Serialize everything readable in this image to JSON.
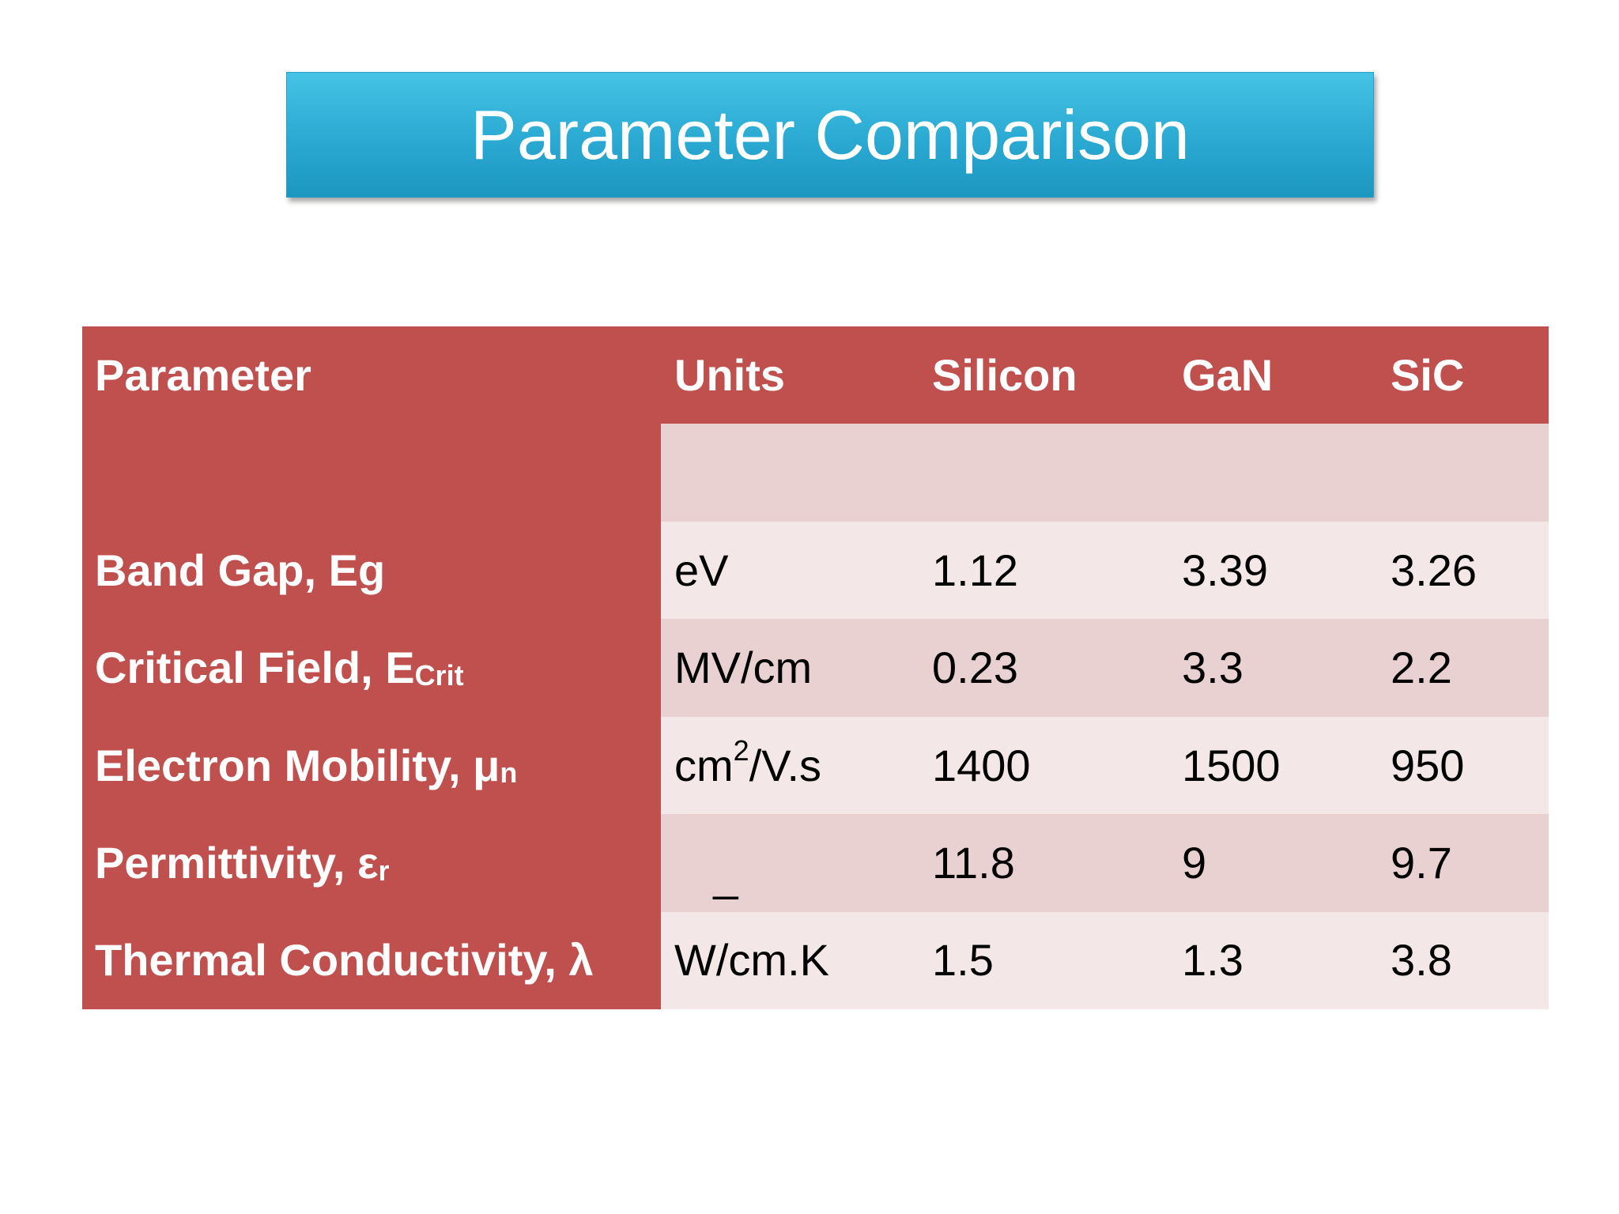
{
  "header": {
    "title": "Parameter Comparison"
  },
  "table": {
    "columns": [
      "Parameter",
      "Units",
      "Silicon",
      "GaN",
      "SiC"
    ],
    "rows": [
      [
        {
          "text": "Band Gap, Eg"
        },
        {
          "text": "eV"
        },
        "1.12",
        "3.39",
        "3.26"
      ],
      [
        {
          "text": "Critical Field, E",
          "sub": "Crit"
        },
        {
          "text": "MV/cm"
        },
        "0.23",
        "3.3",
        "2.2"
      ],
      [
        {
          "text": "Electron Mobility, μ",
          "sub": "n"
        },
        {
          "text": "cm",
          "sup": "2",
          "after": "/V.s"
        },
        "1400",
        "1500",
        "950"
      ],
      [
        {
          "text": "Permittivity, ε",
          "sub": "r"
        },
        {
          "text": "_"
        },
        "11.8",
        "9",
        "9.7"
      ],
      [
        {
          "text": "Thermal Conductivity, λ"
        },
        {
          "text": "W/cm.K"
        },
        "1.5",
        "1.3",
        "3.8"
      ]
    ]
  }
}
